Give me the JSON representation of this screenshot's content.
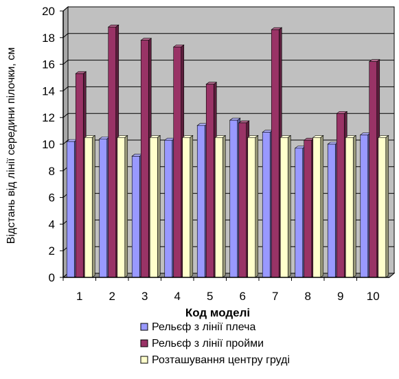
{
  "chart_data": {
    "type": "bar",
    "style": "3d-clustered-column",
    "categories": [
      "1",
      "2",
      "3",
      "4",
      "5",
      "6",
      "7",
      "8",
      "9",
      "10"
    ],
    "series": [
      {
        "name": "Рельєф з лінії плеча",
        "color": "#9999ff",
        "values": [
          10.2,
          10.4,
          9.1,
          10.3,
          11.4,
          11.8,
          10.9,
          9.7,
          10.0,
          10.7
        ]
      },
      {
        "name": "Рельєф з лінії пройми",
        "color": "#993366",
        "values": [
          15.3,
          18.8,
          17.8,
          17.3,
          14.5,
          11.6,
          18.6,
          10.3,
          12.3,
          16.2
        ]
      },
      {
        "name": "Розташування центру груді",
        "color": "#ffffcc",
        "values": [
          10.5,
          10.5,
          10.5,
          10.5,
          10.5,
          10.5,
          10.5,
          10.5,
          10.5,
          10.5
        ]
      }
    ],
    "xlabel": "Код моделі",
    "ylabel": "Відстань від лінії середини пілочки, см",
    "ylim": [
      0,
      20
    ],
    "yticks": [
      0,
      2,
      4,
      6,
      8,
      10,
      12,
      14,
      16,
      18,
      20
    ],
    "grid": true,
    "legend_position": "bottom",
    "wall_color": "#c0c0c0"
  }
}
